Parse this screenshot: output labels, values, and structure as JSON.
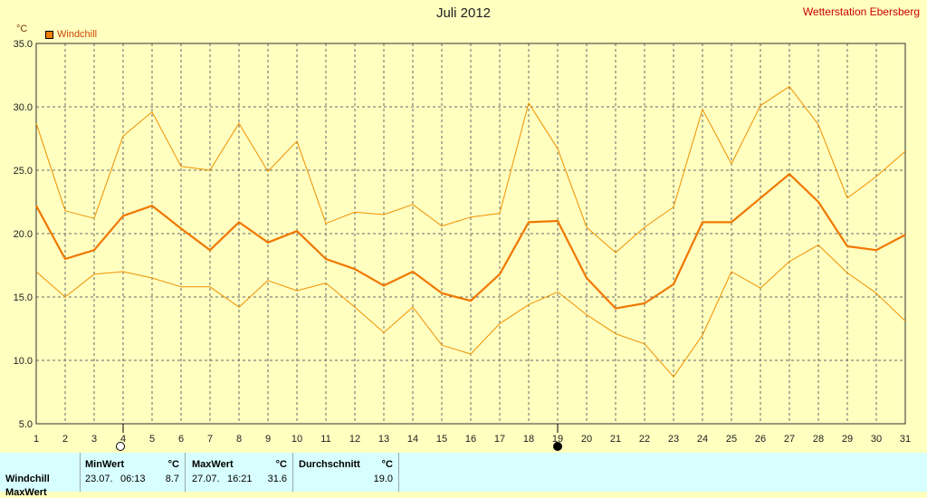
{
  "title": "Juli 2012",
  "station": "Wetterstation Ebersberg",
  "unit": "°C",
  "legend": "Windchill",
  "chart_data": {
    "type": "line",
    "x": [
      1,
      2,
      3,
      4,
      5,
      6,
      7,
      8,
      9,
      10,
      11,
      12,
      13,
      14,
      15,
      16,
      17,
      18,
      19,
      20,
      21,
      22,
      23,
      24,
      25,
      26,
      27,
      28,
      29,
      30,
      31
    ],
    "ylim": [
      5.0,
      35.0
    ],
    "yticks": [
      "5.0",
      "10.0",
      "15.0",
      "20.0",
      "25.0",
      "30.0",
      "35.0"
    ],
    "series": [
      {
        "name": "Windchill",
        "role": "mean",
        "values": [
          22.2,
          18.0,
          18.7,
          21.4,
          22.2,
          20.4,
          18.7,
          20.9,
          19.3,
          20.2,
          18.0,
          17.2,
          15.9,
          17.0,
          15.3,
          14.7,
          16.8,
          20.9,
          21.0,
          16.5,
          14.1,
          14.5,
          16.0,
          20.9,
          20.9,
          22.8,
          24.7,
          22.5,
          19.0,
          18.7,
          19.9
        ]
      },
      {
        "role": "max",
        "values": [
          28.7,
          21.8,
          21.2,
          27.7,
          29.6,
          25.3,
          25.0,
          28.7,
          24.9,
          27.3,
          20.8,
          21.7,
          21.5,
          22.3,
          20.6,
          21.3,
          21.6,
          30.3,
          26.7,
          20.5,
          18.5,
          20.5,
          22.1,
          29.8,
          25.5,
          30.1,
          31.6,
          28.6,
          22.8,
          24.5,
          26.5
        ]
      },
      {
        "role": "min",
        "values": [
          17.0,
          15.0,
          16.8,
          17.0,
          16.5,
          15.8,
          15.8,
          14.2,
          16.3,
          15.5,
          16.1,
          14.2,
          12.2,
          14.2,
          11.2,
          10.5,
          12.9,
          14.4,
          15.4,
          13.6,
          12.1,
          11.3,
          8.7,
          12.0,
          17.0,
          15.7,
          17.8,
          19.1,
          16.9,
          15.3,
          13.1
        ]
      }
    ],
    "grid": true,
    "markers": [
      {
        "x": 4,
        "symbol": "new-moon"
      },
      {
        "x": 19,
        "symbol": "full-moon"
      }
    ]
  },
  "table": {
    "row_label": "Windchill",
    "row_label_2": "MaxWert",
    "min": {
      "header": "MinWert",
      "unit": "°C",
      "date": "23.07.",
      "time": "06:13",
      "value": "8.7"
    },
    "max": {
      "header": "MaxWert",
      "unit": "°C",
      "date": "27.07.",
      "time": "16:21",
      "value": "31.6"
    },
    "avg": {
      "header": "Durchschnitt",
      "unit": "°C",
      "value": "19.0"
    }
  }
}
